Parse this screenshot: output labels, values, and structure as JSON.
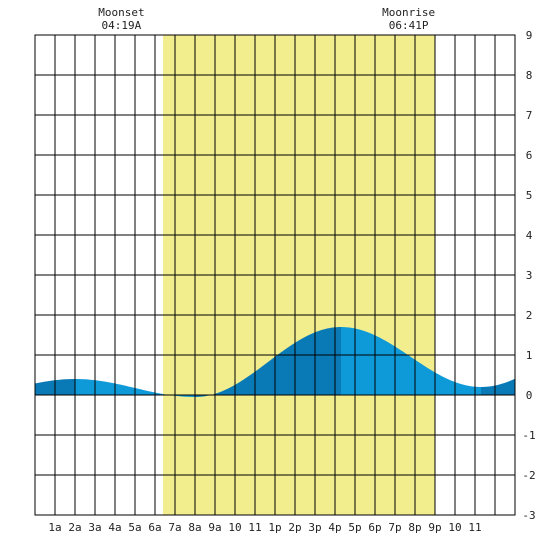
{
  "chart_data": {
    "type": "area",
    "title": "",
    "xlabel": "",
    "ylabel": "",
    "x_range_hours": [
      0,
      24
    ],
    "ylim": [
      -3,
      9
    ],
    "grid": true,
    "x_tick_labels": [
      "1a",
      "2a",
      "3a",
      "4a",
      "5a",
      "6a",
      "7a",
      "8a",
      "9a",
      "10",
      "11",
      "1p",
      "2p",
      "3p",
      "4p",
      "5p",
      "6p",
      "7p",
      "8p",
      "9p",
      "10",
      "11"
    ],
    "y_tick_values": [
      -3,
      -2,
      -1,
      0,
      1,
      2,
      3,
      4,
      5,
      6,
      7,
      8,
      9
    ],
    "daylight_hours": [
      6.4,
      20.0
    ],
    "tide_extremes": [
      {
        "hour": 2.0,
        "value": 0.4
      },
      {
        "hour": 8.0,
        "value": -0.05
      },
      {
        "hour": 15.3,
        "value": 1.7
      },
      {
        "hour": 22.3,
        "value": 0.2
      }
    ],
    "moonset": {
      "label": "Moonset",
      "time": "04:19A",
      "hour": 4.32
    },
    "moonrise": {
      "label": "Moonrise",
      "time": "06:41P",
      "hour": 18.68
    },
    "colors": {
      "daylight": "#f2ee8e",
      "tide_light": "#0e9ad8",
      "tide_dark": "#0a7ab6",
      "grid": "#000000",
      "border": "#000000"
    }
  }
}
